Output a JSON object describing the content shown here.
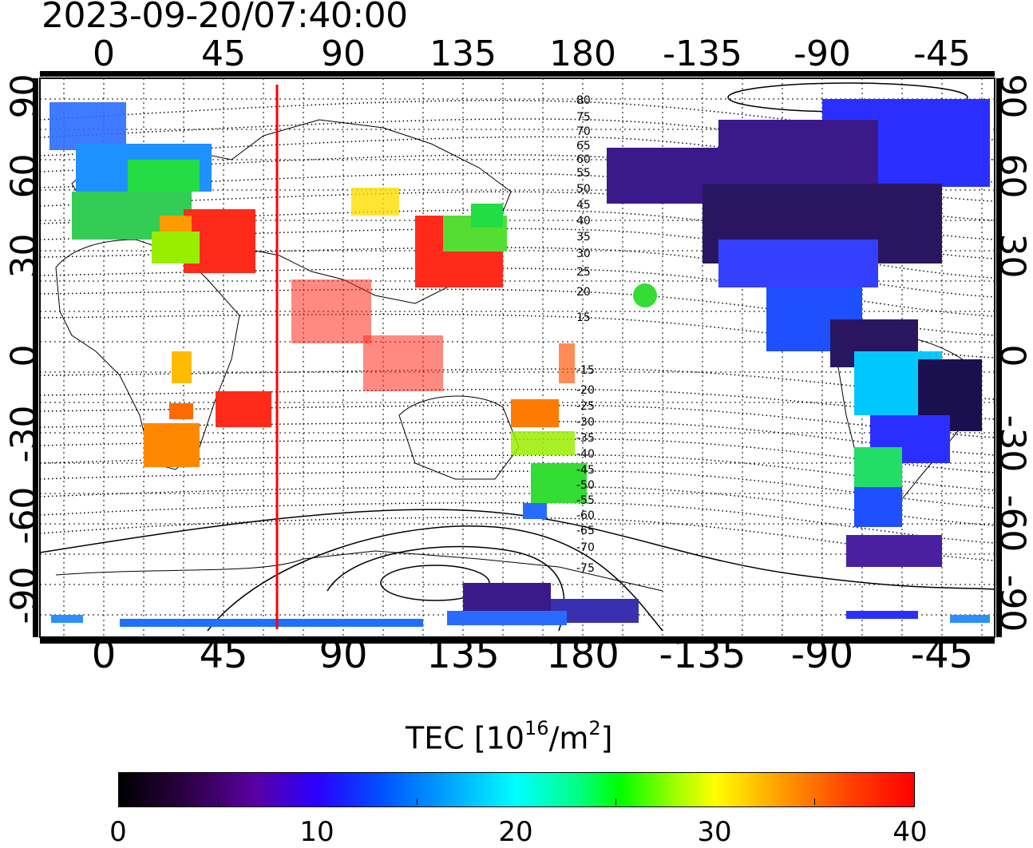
{
  "timestamp": "2023-09-20/07:40:00",
  "map": {
    "lon_ticks": [
      "0",
      "45",
      "90",
      "135",
      "180",
      "-135",
      "-90",
      "-45"
    ],
    "lat_ticks": [
      "90",
      "60",
      "30",
      "0",
      "-30",
      "-60",
      "-90"
    ],
    "marker_longitude": 65,
    "contour_labels": [
      "80",
      "75",
      "70",
      "65",
      "60",
      "55",
      "50",
      "45",
      "40",
      "35",
      "30",
      "25",
      "20",
      "15",
      "-15",
      "-20",
      "-25",
      "-30",
      "-35",
      "-40",
      "-45",
      "-50",
      "-55",
      "-60",
      "-65",
      "-70",
      "-75"
    ]
  },
  "colorbar": {
    "title_prefix": "TEC  [10",
    "title_sup1": "16",
    "title_mid": "/m",
    "title_sup2": "2",
    "title_suffix": "]",
    "ticks": [
      "0",
      "10",
      "20",
      "30",
      "40"
    ],
    "range": [
      0,
      40
    ]
  },
  "colors": {
    "marker": "#ff0000"
  }
}
